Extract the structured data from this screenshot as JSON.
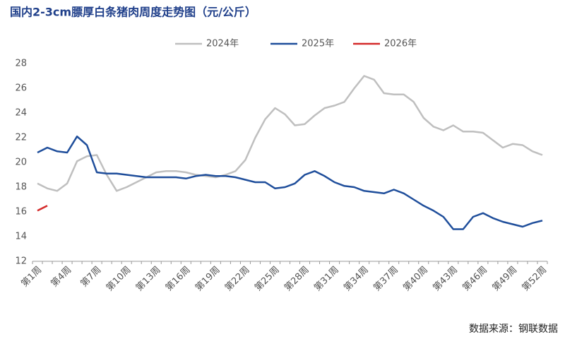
{
  "chart_data": {
    "type": "line",
    "title": "国内2-3cm膘厚白条猪肉周度走势图（元/公斤）",
    "source": "数据来源：钢联数据",
    "categories": [
      "第1周",
      null,
      null,
      "第4周",
      null,
      null,
      "第7周",
      null,
      null,
      "第10周",
      null,
      null,
      "第13周",
      null,
      null,
      "第16周",
      null,
      null,
      "第19周",
      null,
      null,
      "第22周",
      null,
      null,
      "第25周",
      null,
      null,
      "第28周",
      null,
      null,
      "第31周",
      null,
      null,
      "第34周",
      null,
      null,
      "第37周",
      null,
      null,
      "第40周",
      null,
      null,
      "第43周",
      null,
      null,
      "第46周",
      null,
      null,
      "第49周",
      null,
      null,
      "第52周"
    ],
    "series": [
      {
        "name": "2024年",
        "color": "#bfbfbf",
        "values": [
          18.3,
          17.9,
          17.7,
          18.3,
          20.1,
          20.5,
          20.6,
          19.0,
          17.7,
          18.0,
          18.4,
          18.8,
          19.2,
          19.3,
          19.3,
          19.2,
          19.0,
          18.9,
          18.8,
          19.0,
          19.3,
          20.2,
          22.0,
          23.5,
          24.4,
          23.9,
          23.0,
          23.1,
          23.8,
          24.4,
          24.6,
          24.9,
          26.0,
          27.0,
          26.7,
          25.6,
          25.5,
          25.5,
          24.9,
          23.6,
          22.9,
          22.6,
          23.0,
          22.5,
          22.5,
          22.4,
          21.8,
          21.2,
          21.5,
          21.4,
          20.9,
          20.6
        ]
      },
      {
        "name": "2025年",
        "color": "#1f4e9b",
        "values": [
          20.8,
          21.2,
          20.9,
          20.8,
          22.1,
          21.4,
          19.2,
          19.1,
          19.1,
          19.0,
          18.9,
          18.8,
          18.8,
          18.8,
          18.8,
          18.7,
          18.9,
          19.0,
          18.9,
          18.9,
          18.8,
          18.6,
          18.4,
          18.4,
          17.9,
          18.0,
          18.3,
          19.0,
          19.3,
          18.9,
          18.4,
          18.1,
          18.0,
          17.7,
          17.6,
          17.5,
          17.8,
          17.5,
          17.0,
          16.5,
          16.1,
          15.6,
          14.6,
          14.6,
          15.6,
          15.9,
          15.5,
          15.2,
          15.0,
          14.8,
          15.1,
          15.3
        ]
      },
      {
        "name": "2026年",
        "color": "#d42a2a",
        "values": [
          16.1,
          16.5,
          null,
          null,
          null,
          null,
          null,
          null,
          null,
          null,
          null,
          null,
          null,
          null,
          null,
          null,
          null,
          null,
          null,
          null,
          null,
          null,
          null,
          null,
          null,
          null,
          null,
          null,
          null,
          null,
          null,
          null,
          null,
          null,
          null,
          null,
          null,
          null,
          null,
          null,
          null,
          null,
          null,
          null,
          null,
          null,
          null,
          null,
          null,
          null,
          null,
          null
        ]
      }
    ],
    "ylim": [
      12,
      28
    ],
    "yticks": [
      12,
      14,
      16,
      18,
      20,
      22,
      24,
      26,
      28
    ],
    "grid": false,
    "legend": "top"
  }
}
